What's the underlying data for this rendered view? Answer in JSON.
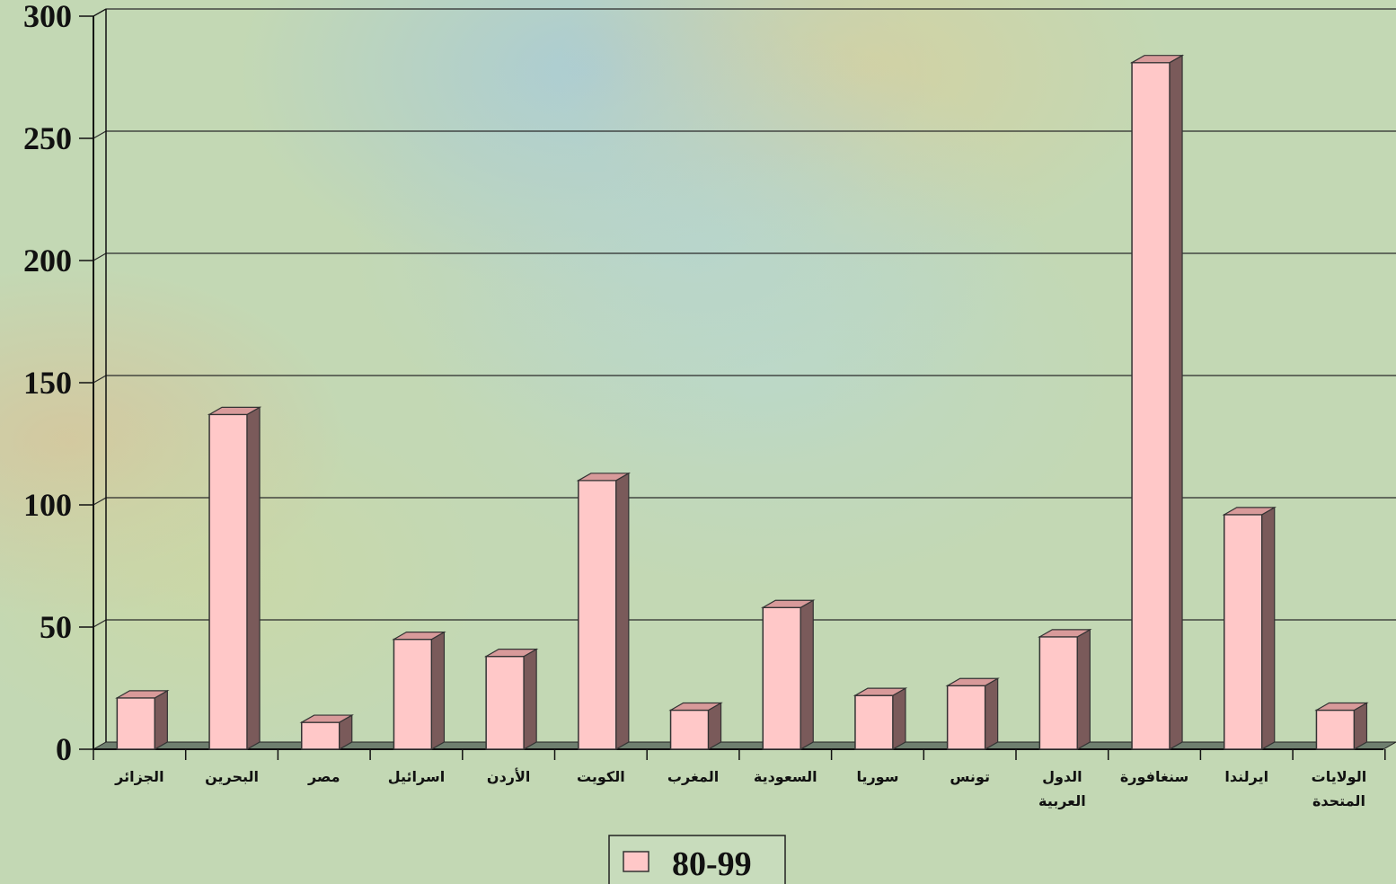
{
  "chart_data": {
    "type": "bar",
    "title": "",
    "xlabel": "",
    "ylabel": "",
    "ylim": [
      0,
      300
    ],
    "yticks": [
      0,
      50,
      100,
      150,
      200,
      250,
      300
    ],
    "grid": true,
    "legend_position": "bottom-center",
    "categories": [
      [
        "الجزائر"
      ],
      [
        "البحرين"
      ],
      [
        "مصر"
      ],
      [
        "اسرائيل"
      ],
      [
        "الأردن"
      ],
      [
        "الكويت"
      ],
      [
        "المغرب"
      ],
      [
        "السعودية"
      ],
      [
        "سوريا"
      ],
      [
        "تونس"
      ],
      [
        "الدول",
        "العربية"
      ],
      [
        "سنغافورة"
      ],
      [
        "ايرلندا"
      ],
      [
        "الولايات",
        "المتحدة"
      ]
    ],
    "series": [
      {
        "name": "80-99",
        "color": "#ffc8c8",
        "values": [
          21,
          137,
          11,
          45,
          38,
          110,
          16,
          58,
          22,
          26,
          46,
          281,
          96,
          16
        ]
      }
    ],
    "colors": {
      "bar_front": "#ffc8c8",
      "bar_side": "#7a5a5a",
      "bar_top": "#d89a9a",
      "grid": "#2a2a2a",
      "floor": "#6f7f6f",
      "background_base": "#c3d8b4"
    }
  }
}
